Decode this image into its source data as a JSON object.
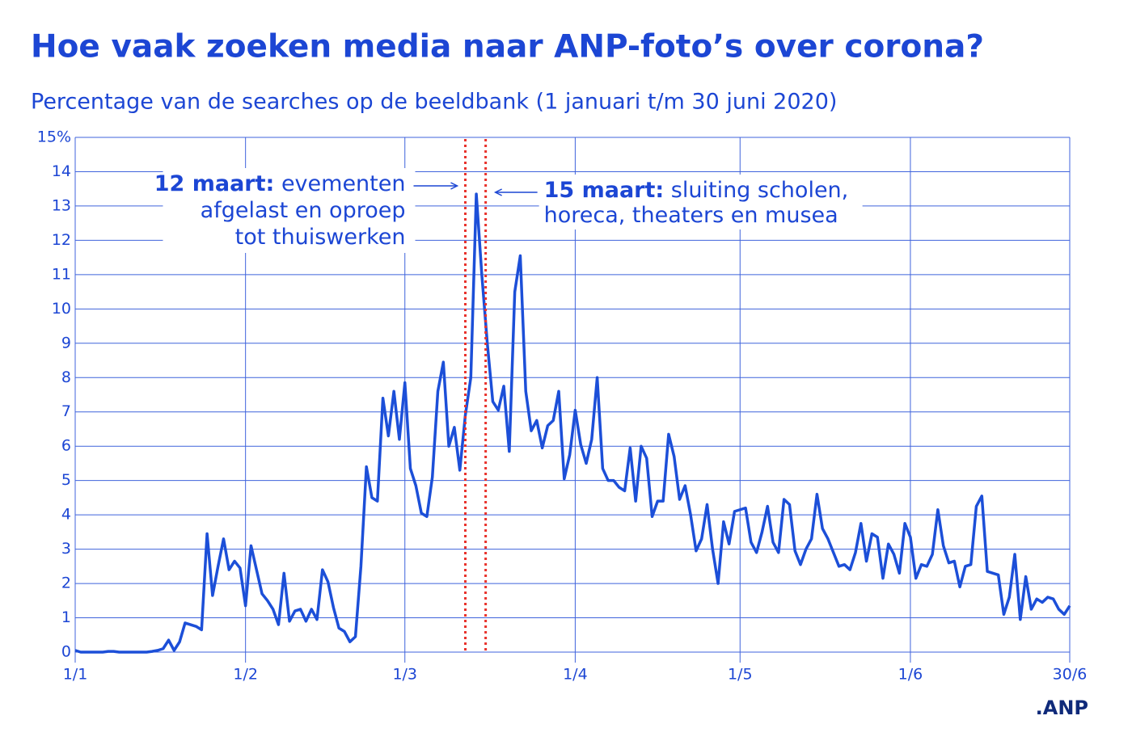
{
  "chart_data": {
    "type": "line",
    "title": "Hoe vaak zoeken media naar ANP-foto’s over corona?",
    "subtitle": "Percentage van de searches op de beeldbank (1 januari t/m 30 juni 2020)",
    "logo": ".ANP",
    "x": [
      0,
      1,
      2,
      3,
      4,
      5,
      6,
      7,
      8,
      9,
      10,
      11,
      12,
      13,
      14,
      15,
      16,
      17,
      18,
      19,
      20,
      21,
      22,
      23,
      24,
      25,
      26,
      27,
      28,
      29,
      30,
      31,
      32,
      33,
      34,
      35,
      36,
      37,
      38,
      39,
      40,
      41,
      42,
      43,
      44,
      45,
      46,
      47,
      48,
      49,
      50,
      51,
      52,
      53,
      54,
      55,
      56,
      57,
      58,
      59,
      60,
      61,
      62,
      63,
      64,
      65,
      66,
      67,
      68,
      69,
      70,
      71,
      72,
      73,
      74,
      75,
      76,
      77,
      78,
      79,
      80,
      81,
      82,
      83,
      84,
      85,
      86,
      87,
      88,
      89,
      90,
      91,
      92,
      93,
      94,
      95,
      96,
      97,
      98,
      99,
      100,
      101,
      102,
      103,
      104,
      105,
      106,
      107,
      108,
      109,
      110,
      111,
      112,
      113,
      114,
      115,
      116,
      117,
      118,
      119,
      120,
      121,
      122,
      123,
      124,
      125,
      126,
      127,
      128,
      129,
      130,
      131,
      132,
      133,
      134,
      135,
      136,
      137,
      138,
      139,
      140,
      141,
      142,
      143,
      144,
      145,
      146,
      147,
      148,
      149,
      150,
      151,
      152,
      153,
      154,
      155,
      156,
      157,
      158,
      159,
      160,
      161,
      162,
      163,
      164,
      165,
      166,
      167,
      168,
      169,
      170,
      171,
      172,
      173,
      174,
      175,
      176,
      177,
      178,
      179,
      180,
      181
    ],
    "series": [
      {
        "name": "searches",
        "color": "#1c4fd8",
        "values": [
          0.05,
          0,
          0,
          0,
          0,
          0,
          0.02,
          0.02,
          0,
          0,
          0,
          0,
          0,
          0,
          0.02,
          0.05,
          0.1,
          0.35,
          0.05,
          0.3,
          0.85,
          0.8,
          0.75,
          0.65,
          3.45,
          1.65,
          2.5,
          3.3,
          2.4,
          2.65,
          2.45,
          1.35,
          3.1,
          2.4,
          1.7,
          1.5,
          1.25,
          0.8,
          2.3,
          0.9,
          1.2,
          1.25,
          0.9,
          1.25,
          0.95,
          2.4,
          2.05,
          1.3,
          0.7,
          0.6,
          0.3,
          0.45,
          2.5,
          5.4,
          4.5,
          4.4,
          7.4,
          6.3,
          7.6,
          6.2,
          7.85,
          5.35,
          4.85,
          4.05,
          3.95,
          5.1,
          7.6,
          8.45,
          6.0,
          6.55,
          5.3,
          6.9,
          8.0,
          13.35,
          11.0,
          9.0,
          7.3,
          7.05,
          7.75,
          5.85,
          10.5,
          11.55,
          7.6,
          6.45,
          6.75,
          5.95,
          6.6,
          6.75,
          7.6,
          5.05,
          5.75,
          7.05,
          6.05,
          5.5,
          6.2,
          8.0,
          5.35,
          5.0,
          5.0,
          4.8,
          4.7,
          5.95,
          4.4,
          6.0,
          5.65,
          3.95,
          4.4,
          4.4,
          6.35,
          5.7,
          4.45,
          4.85,
          4.0,
          2.95,
          3.3,
          4.3,
          3.0,
          2.0,
          3.8,
          3.15,
          4.1,
          4.15,
          4.2,
          3.2,
          2.9,
          3.5,
          4.25,
          3.2,
          2.9,
          4.45,
          4.3,
          2.95,
          2.55,
          3.0,
          3.3,
          4.6,
          3.6,
          3.3,
          2.9,
          2.5,
          2.55,
          2.4,
          2.9,
          3.75,
          2.65,
          3.45,
          3.35,
          2.15,
          3.15,
          2.85,
          2.3,
          3.75,
          3.35,
          2.15,
          2.55,
          2.5,
          2.85,
          4.15,
          3.1,
          2.6,
          2.65,
          1.9,
          2.5,
          2.55,
          4.25,
          4.55,
          2.35,
          2.3,
          2.25,
          1.1,
          1.6,
          2.85,
          0.95,
          2.2,
          1.25,
          1.55,
          1.45,
          1.6,
          1.55,
          1.25,
          1.1,
          1.35
        ]
      }
    ],
    "xlim": [
      0,
      181
    ],
    "xticks": [
      {
        "value": 0,
        "label": "1/1"
      },
      {
        "value": 31,
        "label": "1/2"
      },
      {
        "value": 60,
        "label": "1/3"
      },
      {
        "value": 91,
        "label": "1/4"
      },
      {
        "value": 121,
        "label": "1/5"
      },
      {
        "value": 152,
        "label": "1/6"
      },
      {
        "value": 181,
        "label": "30/6"
      }
    ],
    "ylim": [
      0,
      15
    ],
    "yticks": [
      0,
      1,
      2,
      3,
      4,
      5,
      6,
      7,
      8,
      9,
      10,
      11,
      12,
      13,
      14,
      {
        "value": 15,
        "label": "15%"
      }
    ],
    "grid": true,
    "annotations": [
      {
        "x": 71,
        "bold": "12 maart:",
        "lines": [
          "evementen",
          "afgelast en oproep",
          "tot thuiswerken"
        ]
      },
      {
        "x": 74.7,
        "bold": "15 maart:",
        "lines": [
          "sluiting scholen,",
          "horeca, theaters en musea"
        ]
      }
    ],
    "marker_color": "#e8322b"
  }
}
